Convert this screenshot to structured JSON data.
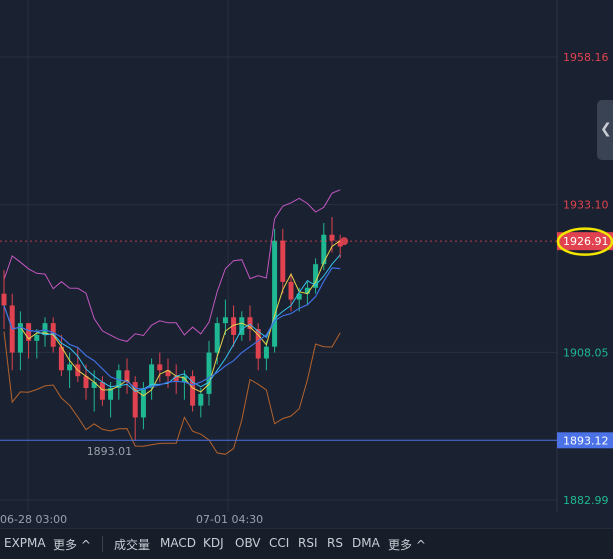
{
  "price_axis": {
    "ticks": [
      {
        "value": 1958.16,
        "label": "1958.16",
        "color": "#e0434f"
      },
      {
        "value": 1933.1,
        "label": "1933.10",
        "color": "#e0434f"
      },
      {
        "value": 1908.05,
        "label": "1908.05",
        "color": "#1fb892"
      },
      {
        "value": 1882.99,
        "label": "1882.99",
        "color": "#1fb892"
      }
    ],
    "current_price": {
      "value": 1926.91,
      "label": "1926.91",
      "color": "#e0434f",
      "highlight": "#f2e600"
    },
    "marker_line": {
      "value": 1893.12,
      "label": "1893.12",
      "color": "#4b72e6"
    }
  },
  "time_axis": {
    "labels": [
      "06-28 03:00",
      "07-01 04:30"
    ]
  },
  "annotations": {
    "low_label": "1893.01"
  },
  "indicator_bar": {
    "main_indicators": [
      "EXPMA",
      "更多 ^"
    ],
    "sub_indicators": [
      "成交量",
      "MACD",
      "KDJ",
      "OBV",
      "CCI",
      "RSI",
      "RS",
      "DMA",
      "更多 ^"
    ]
  },
  "colors": {
    "background": "#1a2130",
    "grid": "#28313f",
    "up": "#1fb892",
    "down": "#e0434f",
    "bollinger": "#c257c2",
    "lower_band": "#b5632c",
    "ma_fast": "#e8d24a",
    "ma_mid": "#36c2f0",
    "ma_slow": "#3d6fe0"
  },
  "icons": {
    "collapse_panel": "chevron-left-icon"
  },
  "chart_data": {
    "type": "candlestick",
    "series": [
      {
        "name": "price",
        "ohlc": [
          [
            1918,
            1922,
            1912,
            1916
          ],
          [
            1916,
            1918,
            1905,
            1908
          ],
          [
            1908,
            1915,
            1905,
            1913
          ],
          [
            1913,
            1913,
            1907,
            1910
          ],
          [
            1910,
            1912,
            1907,
            1911
          ],
          [
            1911,
            1914,
            1909,
            1913
          ],
          [
            1913,
            1914,
            1908,
            1909
          ],
          [
            1909,
            1911,
            1904,
            1905
          ],
          [
            1905,
            1908,
            1902,
            1906
          ],
          [
            1906,
            1909,
            1903,
            1904
          ],
          [
            1904,
            1906,
            1900,
            1902
          ],
          [
            1902,
            1905,
            1898,
            1903
          ],
          [
            1903,
            1904,
            1899,
            1900
          ],
          [
            1900,
            1903,
            1897,
            1902
          ],
          [
            1902,
            1906,
            1900,
            1905
          ],
          [
            1905,
            1907,
            1901,
            1903
          ],
          [
            1903,
            1904,
            1893,
            1897
          ],
          [
            1897,
            1903,
            1895,
            1902
          ],
          [
            1902,
            1907,
            1900,
            1906
          ],
          [
            1906,
            1908,
            1903,
            1905
          ],
          [
            1905,
            1907,
            1902,
            1904
          ],
          [
            1904,
            1906,
            1901,
            1903
          ],
          [
            1903,
            1905,
            1900,
            1904
          ],
          [
            1904,
            1905,
            1898,
            1899
          ],
          [
            1899,
            1902,
            1897,
            1901
          ],
          [
            1901,
            1910,
            1899,
            1908
          ],
          [
            1908,
            1914,
            1906,
            1913
          ],
          [
            1913,
            1917,
            1911,
            1914
          ],
          [
            1914,
            1916,
            1909,
            1911
          ],
          [
            1911,
            1915,
            1910,
            1914
          ],
          [
            1914,
            1916,
            1910,
            1912
          ],
          [
            1912,
            1913,
            1905,
            1907
          ],
          [
            1907,
            1910,
            1905,
            1909
          ],
          [
            1909,
            1929,
            1908,
            1927
          ],
          [
            1927,
            1929,
            1918,
            1920
          ],
          [
            1920,
            1921,
            1915,
            1917
          ],
          [
            1917,
            1919,
            1915,
            1918
          ],
          [
            1918,
            1920,
            1916,
            1919
          ],
          [
            1919,
            1924,
            1918,
            1923
          ],
          [
            1923,
            1930,
            1922,
            1928
          ],
          [
            1928,
            1931,
            1925,
            1927
          ],
          [
            1927,
            1928,
            1924,
            1926
          ]
        ]
      }
    ],
    "overlays": [
      "EXPMA",
      "Bollinger Bands"
    ],
    "yaxis_ticks": [
      1958.16,
      1933.1,
      1908.05,
      1882.99
    ],
    "xaxis_labels": [
      "06-28 03:00",
      "07-01 04:30"
    ],
    "low_annotation": 1893.01,
    "current_price": 1926.91,
    "horizontal_line": 1893.12
  }
}
